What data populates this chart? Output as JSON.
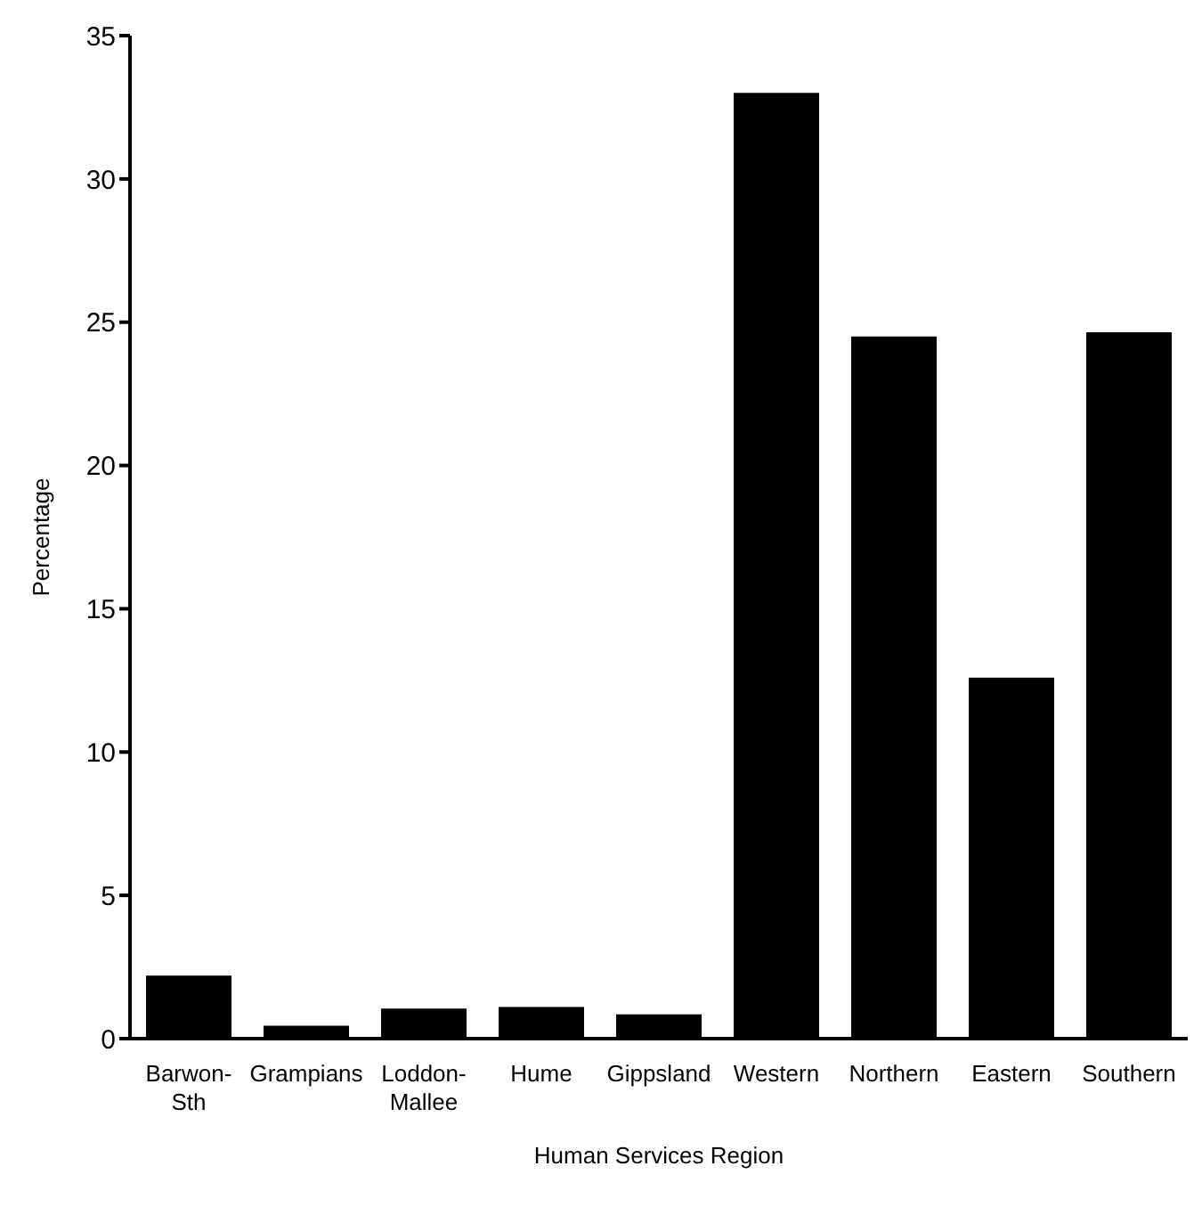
{
  "chart_data": {
    "type": "bar",
    "xlabel": "Human Services Region",
    "ylabel": "Percentage",
    "categories": [
      "Barwon-Sth",
      "Grampians",
      "Loddon-Mallee",
      "Hume",
      "Gippsland",
      "Western",
      "Northern",
      "Eastern",
      "Southern"
    ],
    "values": [
      2.2,
      0.45,
      1.05,
      1.1,
      0.85,
      33.0,
      24.5,
      12.6,
      24.65
    ],
    "color": "#000000",
    "ylim": [
      0,
      35
    ],
    "yticks": [
      0,
      5,
      10,
      15,
      20,
      25,
      30,
      35
    ],
    "grid": false
  }
}
